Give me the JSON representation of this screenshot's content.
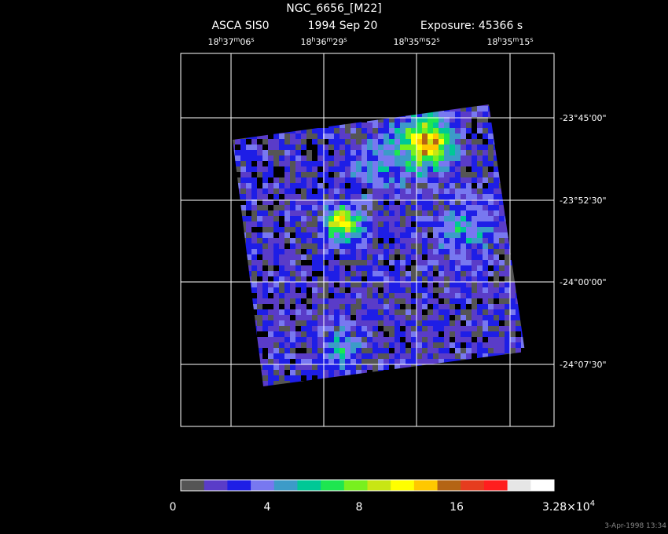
{
  "header": {
    "object": "NGC_6656_[M22]",
    "instrument": "ASCA SIS0",
    "date": "1994 Sep 20",
    "exposure": "Exposure: 45366 s"
  },
  "ra_labels": [
    [
      "18",
      "h",
      "37",
      "m",
      "06",
      "s"
    ],
    [
      "18",
      "h",
      "36",
      "m",
      "29",
      "s"
    ],
    [
      "18",
      "h",
      "35",
      "m",
      "52",
      "s"
    ],
    [
      "18",
      "h",
      "35",
      "m",
      "15",
      "s"
    ]
  ],
  "dec_labels": [
    "-23°45'00\"",
    "-23°52'30\"",
    "-24°00'00\"",
    "-24°07'30\""
  ],
  "colorbar": {
    "colors": [
      "#555555",
      "#5a3cc8",
      "#1e1ee6",
      "#7878f0",
      "#3c9bc8",
      "#00c896",
      "#1ee650",
      "#78f01e",
      "#c8e614",
      "#ffff00",
      "#ffc800",
      "#b46414",
      "#e63c1e",
      "#ff1e1e",
      "#e6e6e6",
      "#ffffff"
    ],
    "labels": [
      "0",
      "4",
      "8",
      "16"
    ],
    "max_label": "3.28×10",
    "max_exponent": "4"
  },
  "footer": "3-Apr-1998 13:34"
}
